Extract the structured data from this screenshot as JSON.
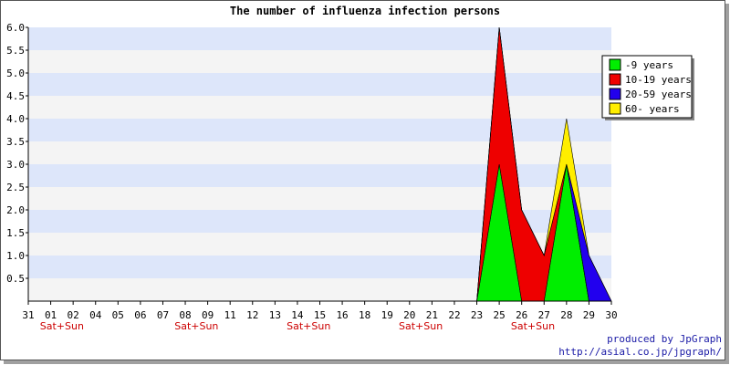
{
  "chart_data": {
    "type": "area",
    "stacked": true,
    "title": "The number of influenza infection persons",
    "x_labels": [
      "31",
      "01",
      "02",
      "04",
      "05",
      "06",
      "07",
      "08",
      "09",
      "11",
      "12",
      "13",
      "14",
      "15",
      "16",
      "18",
      "19",
      "20",
      "21",
      "22",
      "23",
      "25",
      "26",
      "27",
      "28",
      "29",
      "30"
    ],
    "weekend_labels": [
      {
        "after_tick": "01",
        "text": "Sat+Sun"
      },
      {
        "after_tick": "08",
        "text": "Sat+Sun"
      },
      {
        "after_tick": "14",
        "text": "Sat+Sun"
      },
      {
        "after_tick": "20",
        "text": "Sat+Sun"
      },
      {
        "after_tick": "26",
        "text": "Sat+Sun"
      }
    ],
    "ylim": [
      0,
      6
    ],
    "y_ticks": [
      "0.5",
      "1.0",
      "1.5",
      "2.0",
      "2.5",
      "3.0",
      "3.5",
      "4.0",
      "4.5",
      "5.0",
      "5.5",
      "6.0"
    ],
    "grid": "horizontal bands",
    "band_colors": [
      "#f4f4f4",
      "#dde6fa"
    ],
    "legend_position": "top-right",
    "series": [
      {
        "name": "-9 years",
        "color": "#00ee00",
        "values": [
          0,
          0,
          0,
          0,
          0,
          0,
          0,
          0,
          0,
          0,
          0,
          0,
          0,
          0,
          0,
          0,
          0,
          0,
          0,
          0,
          0,
          3,
          0,
          0,
          3,
          0,
          0
        ]
      },
      {
        "name": "10-19 years",
        "color": "#ee0000",
        "values": [
          0,
          0,
          0,
          0,
          0,
          0,
          0,
          0,
          0,
          0,
          0,
          0,
          0,
          0,
          0,
          0,
          0,
          0,
          0,
          0,
          0,
          3,
          2,
          1,
          0,
          0,
          0
        ]
      },
      {
        "name": "20-59 years",
        "color": "#2200ee",
        "values": [
          0,
          0,
          0,
          0,
          0,
          0,
          0,
          0,
          0,
          0,
          0,
          0,
          0,
          0,
          0,
          0,
          0,
          0,
          0,
          0,
          0,
          0,
          0,
          0,
          0,
          1,
          0
        ]
      },
      {
        "name": "60- years",
        "color": "#ffee00",
        "values": [
          0,
          0,
          0,
          0,
          0,
          0,
          0,
          0,
          0,
          0,
          0,
          0,
          0,
          0,
          0,
          0,
          0,
          0,
          0,
          0,
          0,
          0,
          0,
          0,
          1,
          0,
          0
        ]
      }
    ]
  },
  "credits": {
    "line1": "produced by JpGraph",
    "line2": "http://asial.co.jp/jpgraph/"
  }
}
